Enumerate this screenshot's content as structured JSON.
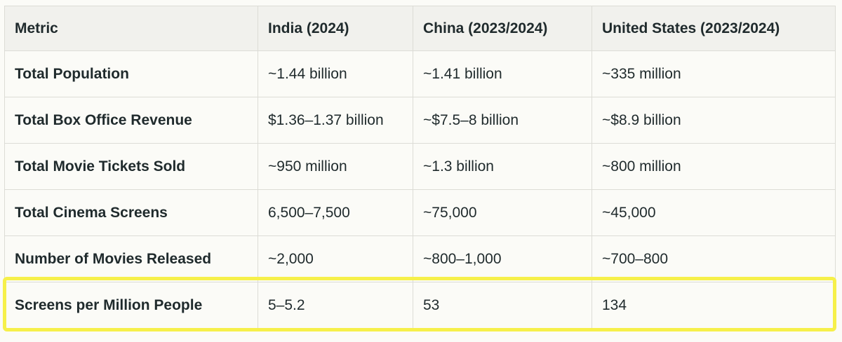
{
  "table": {
    "headers": [
      "Metric",
      "India (2024)",
      "China (2023/2024)",
      "United States (2023/2024)"
    ],
    "rows": [
      [
        "Total Population",
        "~1.44 billion",
        "~1.41 billion",
        "~335 million"
      ],
      [
        "Total Box Office Revenue",
        "$1.36–1.37 billion",
        "~$7.5–8 billion",
        "~$8.9 billion"
      ],
      [
        "Total Movie Tickets Sold",
        "~950 million",
        "~1.3 billion",
        "~800 million"
      ],
      [
        "Total Cinema Screens",
        "6,500–7,500",
        "~75,000",
        "~45,000"
      ],
      [
        "Number of Movies Released",
        "~2,000",
        "~800–1,000",
        "~700–800"
      ],
      [
        "Screens per Million People",
        "5–5.2",
        "53",
        "134"
      ]
    ]
  },
  "colors": {
    "highlight": "#f6f04a",
    "header_background": "#f1f1ed",
    "text": "#1f2a2c",
    "border": "#dcdcd6"
  }
}
